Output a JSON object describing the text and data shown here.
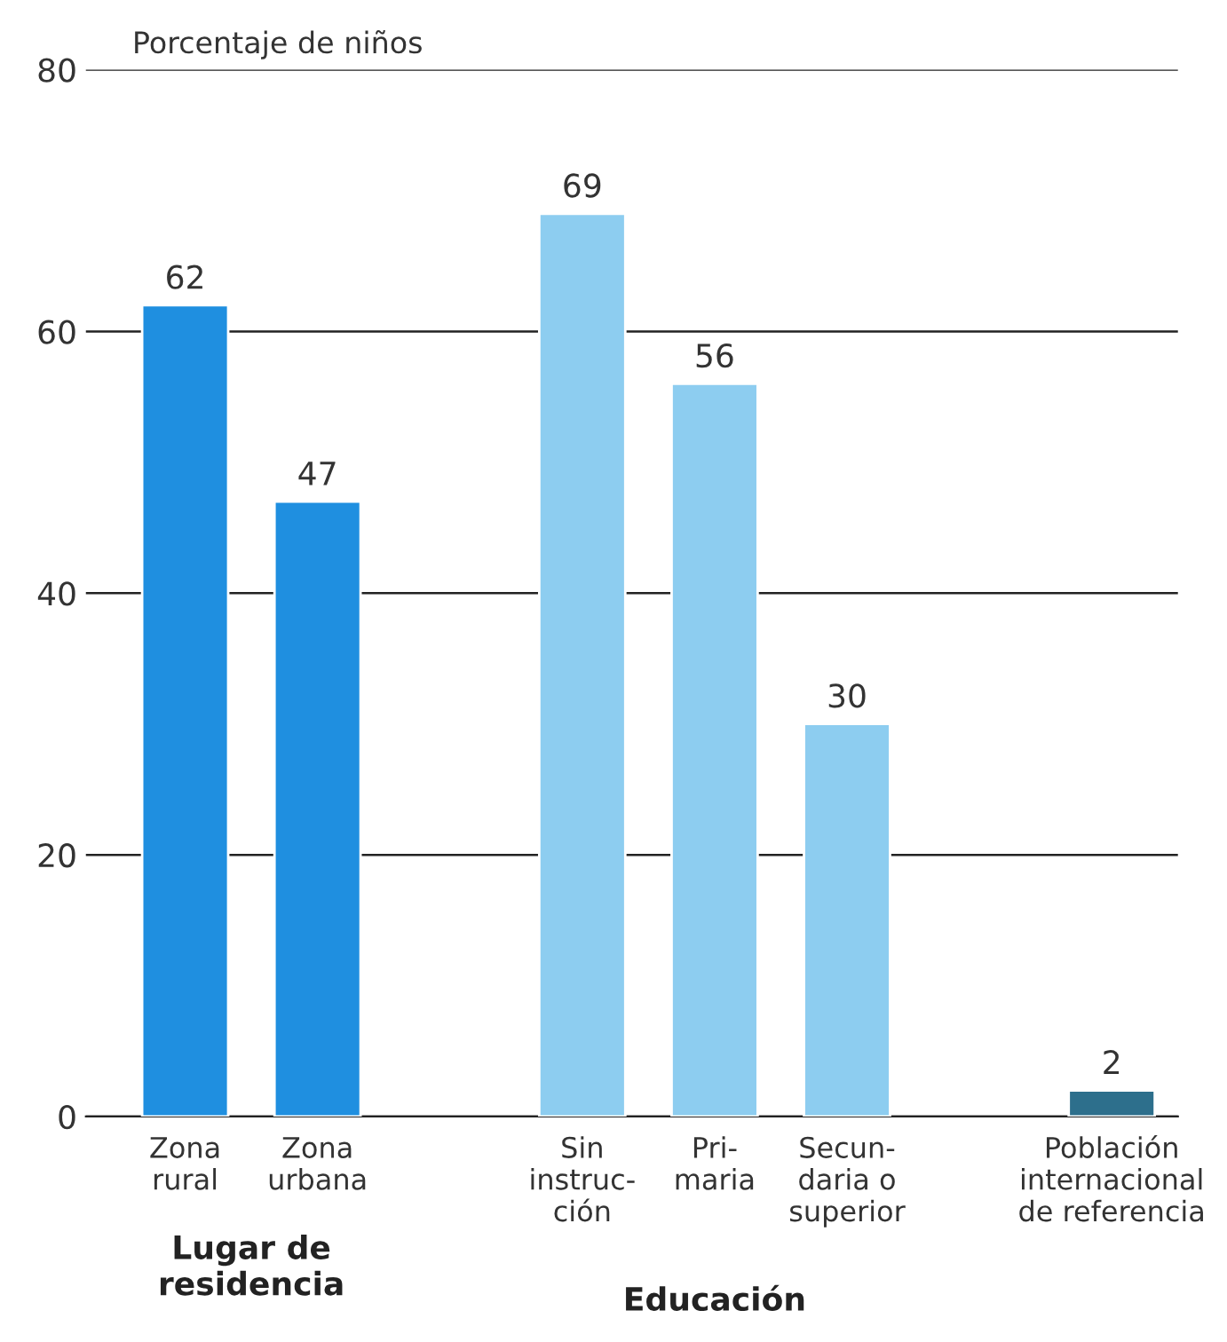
{
  "chart_data": {
    "type": "bar",
    "ylabel": "Porcentaje de niños",
    "categories": [
      "Zona\nrural",
      "Zona\nurbana",
      null,
      "Sin\ninstruc-\nción",
      "Pri-\nmaria",
      "Secun-\ndaria o\nsuperior",
      null,
      "Población\ninternacional\nde referencia"
    ],
    "values": [
      62,
      47,
      null,
      69,
      56,
      30,
      null,
      2
    ],
    "colors": [
      "#1f8fe0",
      "#1f8fe0",
      "#1f8fe0",
      "#8dcdf0",
      "#8dcdf0",
      "#8dcdf0",
      "#2d6f8c",
      "#2d6f8c"
    ],
    "ylim": [
      0,
      80
    ],
    "yticks": [
      0,
      20,
      40,
      60,
      80
    ],
    "grid": "y",
    "data_labels": true,
    "annotations": [
      "Lugar de\nresidencia",
      "Educación"
    ]
  }
}
